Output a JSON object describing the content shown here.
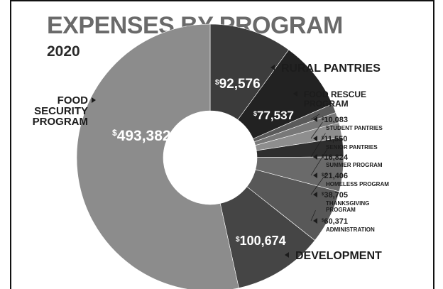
{
  "chart_data": {
    "type": "pie",
    "title": "EXPENSES BY PROGRAM",
    "subtitle": "2020",
    "currency": "$",
    "slices": [
      {
        "label": "RURAL PANTRIES",
        "label_lines": [
          "RURAL PANTRIES"
        ],
        "value": 92576,
        "display": "92,576",
        "color": "#3c3c3c"
      },
      {
        "label": "FOOD RESCUE PROGRAM",
        "label_lines": [
          "FOOD RESCUE",
          "PROGRAM"
        ],
        "value": 77537,
        "display": "77,537",
        "color": "#222222"
      },
      {
        "label": "STUDENT PANTRIES",
        "label_lines": [
          "STUDENT PANTRIES"
        ],
        "value": 10083,
        "display": "10,083",
        "color": "#5a5a5a"
      },
      {
        "label": "SENIOR PANTRIES",
        "label_lines": [
          "SENIOR PANTRIES"
        ],
        "value": 11550,
        "display": "11,550",
        "color": "#787878"
      },
      {
        "label": "SUMMER PROGRAM",
        "label_lines": [
          "SUMMER PROGRAM"
        ],
        "value": 16824,
        "display": "16,824",
        "color": "#8e8e8e"
      },
      {
        "label": "HOMELESS PROGRAM",
        "label_lines": [
          "HOMELESS PROGRAM"
        ],
        "value": 21406,
        "display": "21,406",
        "color": "#2e2e2e"
      },
      {
        "label": "THANKSGIVING PROGRAM",
        "label_lines": [
          "THANKSGIVING",
          "PROGRAM"
        ],
        "value": 38705,
        "display": "38,705",
        "color": "#6a6a6a"
      },
      {
        "label": "ADMINISTRATION",
        "label_lines": [
          "ADMINISTRATION"
        ],
        "value": 60371,
        "display": "60,371",
        "color": "#585858"
      },
      {
        "label": "DEVELOPMENT",
        "label_lines": [
          "DEVELOPMENT"
        ],
        "value": 100674,
        "display": "100,674",
        "color": "#454545"
      },
      {
        "label": "FOOD SECURITY PROGRAM",
        "label_lines": [
          "FOOD",
          "SECURITY",
          "PROGRAM"
        ],
        "value": 493382,
        "display": "493,382",
        "color": "#8c8c8c"
      }
    ]
  }
}
